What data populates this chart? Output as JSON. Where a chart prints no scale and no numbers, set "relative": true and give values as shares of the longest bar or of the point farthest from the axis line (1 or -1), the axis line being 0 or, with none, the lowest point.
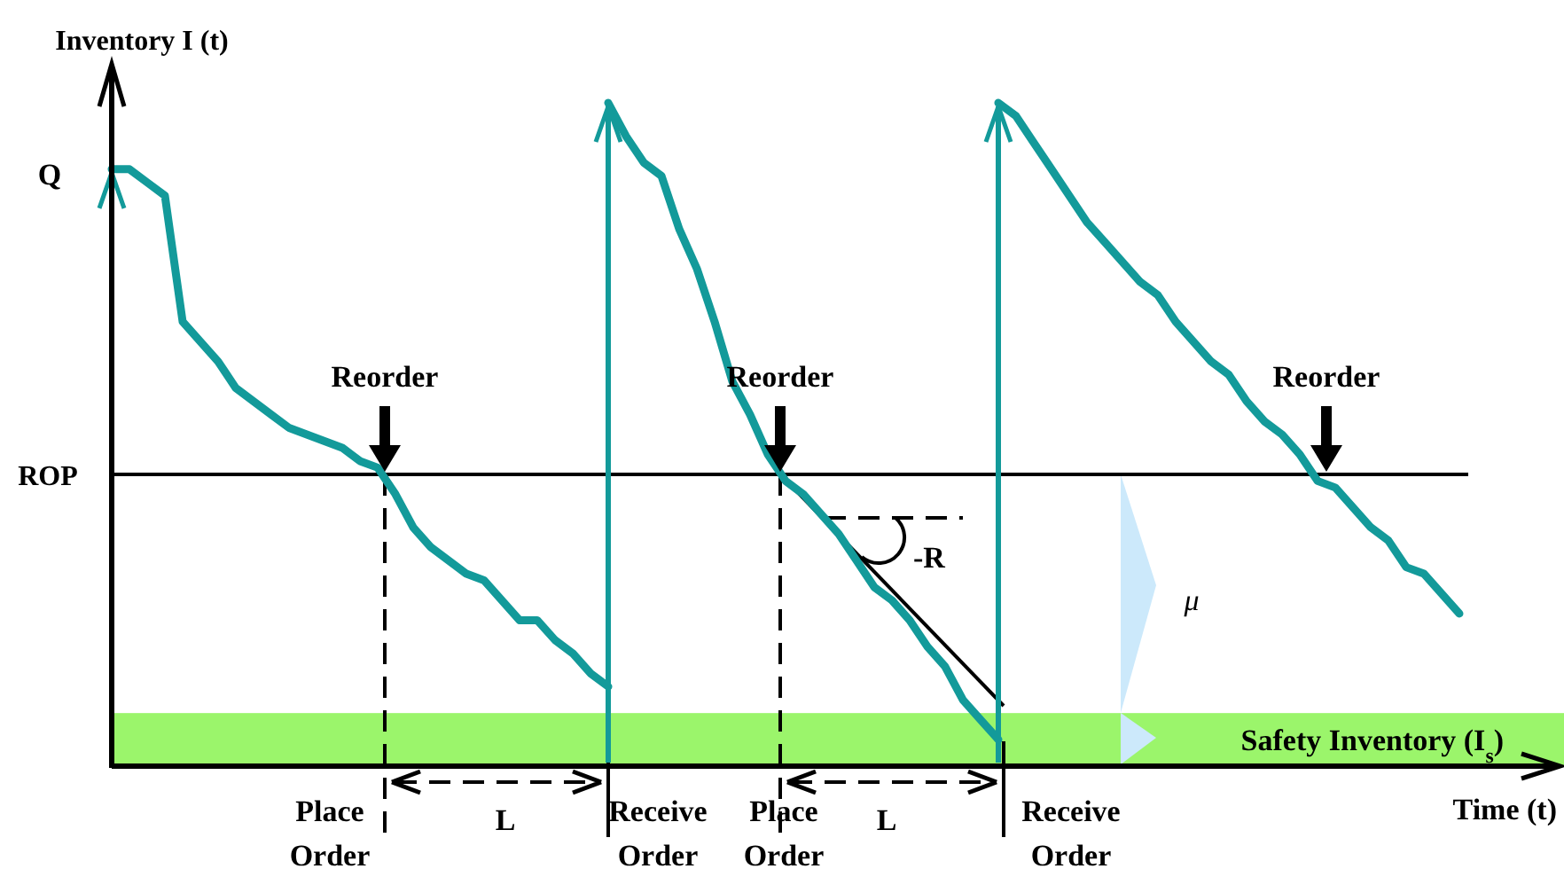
{
  "chart_data": {
    "type": "line",
    "relative": true,
    "xlabel": "Time (t)",
    "ylabel": "Inventory I (t)",
    "categories": [
      null,
      null,
      null,
      null,
      null,
      null,
      null,
      null,
      null,
      null,
      null,
      null,
      null,
      null,
      null,
      null,
      null,
      null,
      null,
      null,
      null,
      null,
      null,
      null,
      null,
      null,
      null,
      null,
      null,
      null,
      null,
      null,
      null,
      null,
      null,
      null,
      null,
      null,
      null,
      null,
      null,
      null,
      null,
      null,
      null,
      null,
      null,
      null,
      null,
      null,
      null,
      null,
      null,
      null,
      null,
      null,
      null,
      null,
      null,
      null,
      null,
      null,
      null,
      null,
      null,
      null,
      null,
      null,
      null,
      null,
      null,
      null,
      null,
      null,
      null,
      null,
      null,
      null,
      null,
      null,
      null,
      null
    ],
    "series": [
      {
        "color": "#139a9a",
        "values": [
          0.9,
          0.9,
          0.88,
          0.86,
          0.67,
          0.64,
          0.61,
          0.57,
          0.55,
          0.53,
          0.51,
          0.5,
          0.49,
          0.48,
          0.46,
          0.45,
          0.41,
          0.36,
          0.33,
          0.31,
          0.29,
          0.28,
          0.25,
          0.22,
          0.22,
          0.19,
          0.17,
          0.14,
          0.12,
          null,
          null,
          null,
          null,
          null,
          null,
          null,
          null,
          null,
          null,
          null,
          null,
          null,
          null,
          null,
          null,
          null,
          null,
          null,
          null,
          null,
          null,
          null,
          null,
          null,
          null,
          null,
          null,
          null,
          null,
          null,
          null,
          null,
          null,
          null,
          null,
          null,
          null,
          null,
          null,
          null,
          null,
          null,
          null,
          null,
          null,
          null,
          null,
          null,
          null,
          null,
          null,
          null
        ]
      },
      {
        "color": "#139a9a",
        "values": [
          null,
          null,
          null,
          null,
          null,
          null,
          null,
          null,
          null,
          null,
          null,
          null,
          null,
          null,
          null,
          null,
          null,
          null,
          null,
          null,
          null,
          null,
          null,
          null,
          null,
          null,
          null,
          null,
          1.0,
          0.95,
          0.91,
          0.89,
          0.81,
          0.75,
          0.67,
          0.58,
          0.53,
          0.47,
          0.43,
          0.41,
          0.38,
          0.35,
          0.31,
          0.27,
          0.25,
          0.22,
          0.18,
          0.15,
          0.1,
          0.07,
          0.04,
          null,
          null,
          null,
          null,
          null,
          null,
          null,
          null,
          null,
          null,
          null,
          null,
          null,
          null,
          null,
          null,
          null,
          null,
          null,
          null,
          null,
          null,
          null,
          null,
          null,
          null,
          null,
          null,
          null,
          null,
          null
        ]
      },
      {
        "color": "#139a9a",
        "values": [
          null,
          null,
          null,
          null,
          null,
          null,
          null,
          null,
          null,
          null,
          null,
          null,
          null,
          null,
          null,
          null,
          null,
          null,
          null,
          null,
          null,
          null,
          null,
          null,
          null,
          null,
          null,
          null,
          null,
          null,
          null,
          null,
          null,
          null,
          null,
          null,
          null,
          null,
          null,
          null,
          null,
          null,
          null,
          null,
          null,
          null,
          null,
          null,
          null,
          null,
          1.0,
          0.98,
          0.94,
          0.9,
          0.86,
          0.82,
          0.79,
          0.76,
          0.73,
          0.71,
          0.67,
          0.64,
          0.61,
          0.59,
          0.55,
          0.52,
          0.5,
          0.47,
          0.43,
          0.42,
          0.39,
          0.36,
          0.34,
          0.3,
          0.29,
          0.26,
          0.23,
          null,
          null,
          null,
          null,
          null
        ]
      }
    ],
    "ref_lines": [
      {
        "axis": "y",
        "value": 0.44,
        "label": "ROP",
        "color": "#000000"
      }
    ],
    "bands": [
      {
        "axis": "y",
        "from": 0,
        "to": 0.08,
        "label": "Safety Inventory (I$_{s}$)",
        "color": "#9bf56b"
      }
    ],
    "annotations": [
      "Q",
      "Reorder",
      "Reorder",
      "Reorder",
      "Place Order",
      "Receive Order",
      "Place Order",
      "Receive Order",
      "L",
      "L",
      "-R",
      "μ"
    ]
  }
}
